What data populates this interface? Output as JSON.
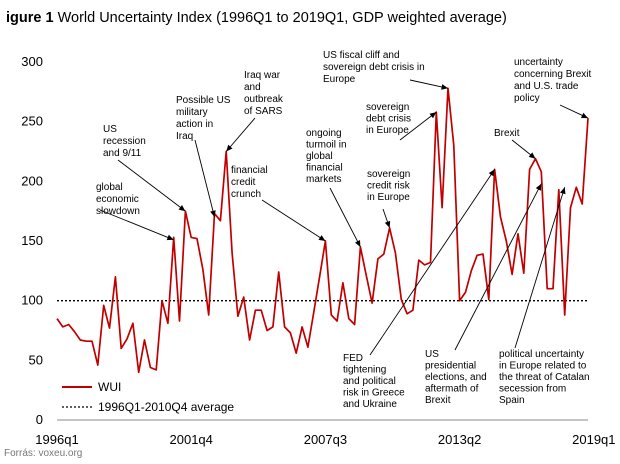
{
  "title_bold": "igure 1",
  "title_rest": "World Uncertainty Index (1996Q1 to 2019Q1, GDP weighted average)",
  "source": "Forrás: voxeu.org",
  "chart_data": {
    "type": "line",
    "title": "World Uncertainty Index (1996Q1 to 2019Q1, GDP weighted average)",
    "ylim": [
      0,
      300
    ],
    "yticks": [
      "0",
      "50",
      "100",
      "150",
      "200",
      "250",
      "300"
    ],
    "x_tick_labels": [
      "1996q1",
      "2001q4",
      "2007q3",
      "2013q2",
      "2019q1"
    ],
    "x_tick_positions": [
      0,
      23,
      46,
      69,
      92
    ],
    "series": [
      {
        "name": "WUI",
        "color": "#c00000",
        "values": [
          85,
          78,
          80,
          74,
          67,
          66,
          66,
          46,
          96,
          77,
          120,
          60,
          68,
          81,
          40,
          67,
          44,
          42,
          100,
          81,
          153,
          83,
          175,
          153,
          152,
          126,
          88,
          173,
          167,
          225,
          140,
          87,
          103,
          67,
          92,
          92,
          75,
          78,
          124,
          78,
          73,
          56,
          78,
          61,
          90,
          120,
          150,
          88,
          83,
          115,
          85,
          80,
          145,
          121,
          98,
          135,
          139,
          161,
          140,
          101,
          89,
          92,
          134,
          130,
          132,
          258,
          178,
          278,
          230,
          100,
          107,
          125,
          138,
          139,
          101,
          210,
          170,
          150,
          122,
          156,
          123,
          210,
          219,
          208,
          110,
          110,
          193,
          88,
          178,
          195,
          181,
          253
        ]
      },
      {
        "name": "1996Q1-2010Q4 average",
        "color": "#000000",
        "style": "dotted",
        "values": [
          100
        ]
      }
    ],
    "legend": [
      "WUI",
      "1996Q1-2010Q4 average"
    ],
    "legend_position": "bottom-left",
    "annotations": [
      {
        "id": "ann1",
        "lines": [
          "global",
          "economic",
          "slowdown"
        ],
        "x": 20,
        "y": 151
      },
      {
        "id": "ann2",
        "lines": [
          "US",
          "recession",
          "and 9/11"
        ],
        "x": 22,
        "y": 175
      },
      {
        "id": "ann3",
        "lines": [
          "Possible US",
          "military",
          "action in",
          "Iraq"
        ],
        "x": 27,
        "y": 170
      },
      {
        "id": "ann4",
        "lines": [
          "Iraq war",
          "and",
          "outbreak",
          "of SARS"
        ],
        "x": 29,
        "y": 225
      },
      {
        "id": "ann5",
        "lines": [
          "financial",
          "credit",
          "crunch"
        ],
        "x": 46,
        "y": 150
      },
      {
        "id": "ann6",
        "lines": [
          "ongoing",
          "turmoil in",
          "global",
          "financial",
          "markets"
        ],
        "x": 52,
        "y": 145
      },
      {
        "id": "ann7",
        "lines": [
          "US fiscal cliff and",
          "sovereign debt crisis in",
          "Europe"
        ],
        "x": 67,
        "y": 278
      },
      {
        "id": "ann8",
        "lines": [
          "sovereign",
          "debt crisis",
          "in Europe"
        ],
        "x": 65,
        "y": 258
      },
      {
        "id": "ann9",
        "lines": [
          "sovereign",
          "credit risk",
          "in Europe"
        ],
        "x": 57,
        "y": 161
      },
      {
        "id": "ann10",
        "lines": [
          "uncertainty",
          "concerning Brexit",
          "and U.S. trade",
          "policy"
        ],
        "x": 91,
        "y": 253
      },
      {
        "id": "ann11",
        "lines": [
          "Brexit"
        ],
        "x": 82,
        "y": 219
      },
      {
        "id": "ann12",
        "lines": [
          "FED",
          "tightening",
          "and political",
          "risk in Greece",
          "and Ukraine"
        ],
        "x": 75,
        "y": 210
      },
      {
        "id": "ann13",
        "lines": [
          "US",
          "presidential",
          "elections, and",
          "aftermath of",
          "Brexit"
        ],
        "x": 83,
        "y": 198
      },
      {
        "id": "ann14",
        "lines": [
          "political uncertainty",
          "in Europe related to",
          "the threat of Catalan",
          "secession from",
          "Spain"
        ],
        "x": 87,
        "y": 195
      }
    ]
  }
}
